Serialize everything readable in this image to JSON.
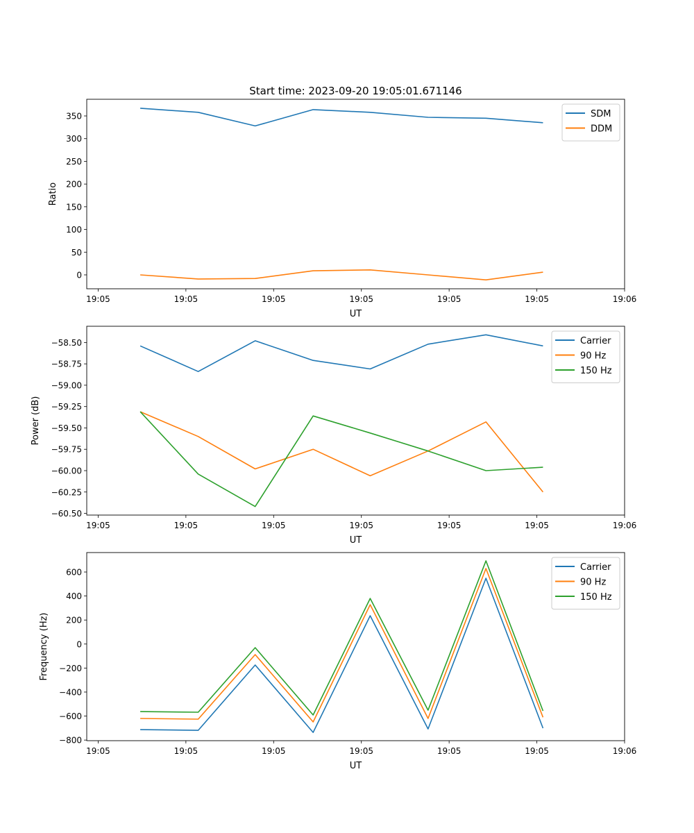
{
  "chart_data": [
    {
      "type": "line",
      "title": "Start time: 2023-09-20 19:05:01.671146",
      "xlabel": "UT",
      "ylabel": "Ratio",
      "x_seconds": [
        4.8,
        11.4,
        17.9,
        24.5,
        31.0,
        37.6,
        44.2,
        50.7
      ],
      "xlim": [
        -1.3,
        60
      ],
      "xticks": [
        0,
        10,
        20,
        30,
        40,
        50,
        60
      ],
      "xtick_labels": [
        "19:05",
        "19:05",
        "19:05",
        "19:05",
        "19:05",
        "19:05",
        "19:06"
      ],
      "ylim": [
        -30.6,
        386.7
      ],
      "yticks": [
        0,
        50,
        100,
        150,
        200,
        250,
        300,
        350
      ],
      "ytick_labels": [
        "0",
        "50",
        "100",
        "150",
        "200",
        "250",
        "300",
        "350"
      ],
      "legend_position": "top-right",
      "series": [
        {
          "name": "SDM",
          "color": "#1f77b4",
          "values": [
            367,
            358,
            328,
            364,
            358,
            347,
            345,
            335
          ]
        },
        {
          "name": "DDM",
          "color": "#ff7f0e",
          "values": [
            0,
            -9,
            -8,
            9,
            11,
            0,
            -11,
            6
          ]
        }
      ]
    },
    {
      "type": "line",
      "title": "",
      "xlabel": "UT",
      "ylabel": "Power (dB)",
      "x_seconds": [
        4.8,
        11.4,
        17.9,
        24.5,
        31.0,
        37.6,
        44.2,
        50.7
      ],
      "xlim": [
        -1.3,
        60
      ],
      "xticks": [
        0,
        10,
        20,
        30,
        40,
        50,
        60
      ],
      "xtick_labels": [
        "19:05",
        "19:05",
        "19:05",
        "19:05",
        "19:05",
        "19:05",
        "19:06"
      ],
      "ylim": [
        -60.52,
        -58.31
      ],
      "yticks": [
        -60.5,
        -60.25,
        -60.0,
        -59.75,
        -59.5,
        -59.25,
        -59.0,
        -58.75,
        -58.5
      ],
      "ytick_labels": [
        "−60.50",
        "−60.25",
        "−60.00",
        "−59.75",
        "−59.50",
        "−59.25",
        "−59.00",
        "−58.75",
        "−58.50"
      ],
      "legend_position": "top-right",
      "series": [
        {
          "name": "Carrier",
          "color": "#1f77b4",
          "values": [
            -58.54,
            -58.84,
            -58.48,
            -58.71,
            -58.81,
            -58.52,
            -58.41,
            -58.54
          ]
        },
        {
          "name": "90 Hz",
          "color": "#ff7f0e",
          "values": [
            -59.31,
            -59.6,
            -59.98,
            -59.75,
            -60.06,
            -59.77,
            -59.43,
            -60.25
          ]
        },
        {
          "name": "150 Hz",
          "color": "#2ca02c",
          "values": [
            -59.31,
            -60.04,
            -60.42,
            -59.36,
            -59.56,
            -59.77,
            -60.0,
            -59.96
          ]
        }
      ]
    },
    {
      "type": "line",
      "title": "",
      "xlabel": "UT",
      "ylabel": "Frequency (Hz)",
      "x_seconds": [
        4.8,
        11.4,
        17.9,
        24.5,
        31.0,
        37.6,
        44.2,
        50.7
      ],
      "xlim": [
        -1.3,
        60
      ],
      "xticks": [
        0,
        10,
        20,
        30,
        40,
        50,
        60
      ],
      "xtick_labels": [
        "19:05",
        "19:05",
        "19:05",
        "19:05",
        "19:05",
        "19:05",
        "19:06"
      ],
      "ylim": [
        -805,
        762
      ],
      "yticks": [
        -800,
        -600,
        -400,
        -200,
        0,
        200,
        400,
        600
      ],
      "ytick_labels": [
        "−800",
        "−600",
        "−400",
        "−200",
        "0",
        "200",
        "400",
        "600"
      ],
      "legend_position": "top-right",
      "series": [
        {
          "name": "Carrier",
          "color": "#1f77b4",
          "values": [
            -713,
            -719,
            -175,
            -736,
            236,
            -707,
            548,
            -701
          ]
        },
        {
          "name": "90 Hz",
          "color": "#ff7f0e",
          "values": [
            -620,
            -626,
            -88,
            -649,
            328,
            -620,
            629,
            -610
          ]
        },
        {
          "name": "150 Hz",
          "color": "#2ca02c",
          "values": [
            -563,
            -568,
            -30,
            -591,
            380,
            -551,
            693,
            -557
          ]
        }
      ]
    }
  ]
}
